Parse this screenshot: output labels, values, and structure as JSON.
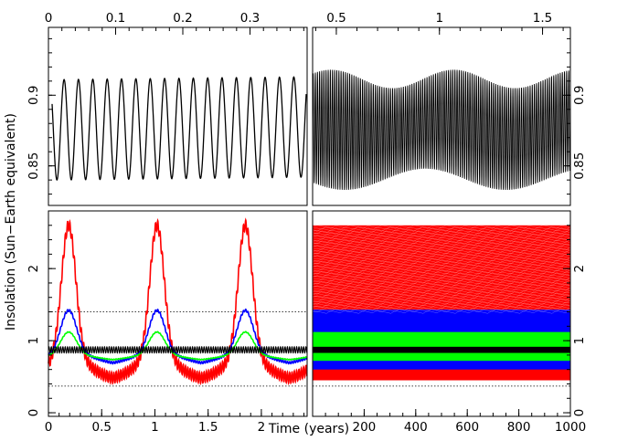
{
  "chart_data": [
    {
      "type": "line",
      "panel": "top-left",
      "x_top_axis": {
        "ticks": [
          0,
          0.1,
          0.2,
          0.3
        ],
        "labels": [
          "0",
          "0.1",
          "0.2",
          "0.3"
        ],
        "range": [
          0,
          0.385
        ]
      },
      "ylim": [
        0.822,
        0.948
      ],
      "y_left_axis": {
        "ticks": [
          0.85,
          0.9
        ],
        "labels": [
          "0.85",
          "0.9"
        ]
      },
      "series": [
        {
          "name": "insolation",
          "color": "#000000",
          "min": 0.84,
          "max": 0.911,
          "cycles": 17.7
        }
      ]
    },
    {
      "type": "line",
      "panel": "top-right",
      "x_top_axis": {
        "ticks": [
          0.5,
          1,
          1.5
        ],
        "labels": [
          "0.5",
          "1",
          "1.5"
        ],
        "range": [
          0.385,
          1.635
        ]
      },
      "ylim": [
        0.822,
        0.948
      ],
      "y_right_axis": {
        "ticks": [
          0.85,
          0.9
        ],
        "labels": [
          "0.85",
          "0.9"
        ]
      },
      "series": [
        {
          "name": "insolation",
          "color": "#000000",
          "min_range": [
            0.833,
            0.848
          ],
          "max_range": [
            0.905,
            0.918
          ],
          "cycles": 120
        }
      ]
    },
    {
      "type": "line",
      "panel": "bottom-left",
      "xlim": [
        0,
        2.43
      ],
      "x_axis": {
        "ticks": [
          0,
          0.5,
          1,
          1.5,
          2
        ],
        "labels": [
          "0",
          "0.5",
          "1",
          "1.5",
          "2"
        ]
      },
      "ylim": [
        -0.05,
        2.8
      ],
      "y_left_axis": {
        "ticks": [
          0,
          1,
          2
        ],
        "labels": [
          "0",
          "1",
          "2"
        ]
      },
      "period": 0.83,
      "peak_times": [
        0.19,
        1.02,
        1.85
      ],
      "reference_lines": [
        0.37,
        1.4
      ],
      "series": [
        {
          "name": "red",
          "color": "#ff0000",
          "min": 0.45,
          "max": 2.6
        },
        {
          "name": "blue",
          "color": "#0000ff",
          "min": 0.66,
          "max": 1.42
        },
        {
          "name": "green",
          "color": "#00ff00",
          "min": 0.72,
          "max": 1.12
        },
        {
          "name": "black",
          "color": "#000000",
          "min": 0.83,
          "max": 0.915
        }
      ]
    },
    {
      "type": "area",
      "panel": "bottom-right",
      "xlim": [
        0,
        1000
      ],
      "x_axis": {
        "ticks": [
          200,
          400,
          600,
          800,
          1000
        ],
        "labels": [
          "200",
          "400",
          "600",
          "800",
          "1000"
        ]
      },
      "ylim": [
        -0.05,
        2.8
      ],
      "y_right_axis": {
        "ticks": [
          0,
          1,
          2
        ],
        "labels": [
          "0",
          "1",
          "2"
        ]
      },
      "reference_lines": [
        0.37
      ],
      "bands": [
        {
          "name": "red",
          "color": "#ff0000",
          "from": 0.45,
          "to": 2.6
        },
        {
          "name": "blue",
          "color": "#0000ff",
          "from": 0.6,
          "to": 1.43
        },
        {
          "name": "green",
          "color": "#00ff00",
          "from": 0.72,
          "to": 1.12
        },
        {
          "name": "black",
          "color": "#000000",
          "from": 0.83,
          "to": 0.915
        }
      ]
    }
  ],
  "labels": {
    "ylabel": "Insolation (Sun−Earth equivalent)",
    "xlabel": "Time (years)"
  }
}
